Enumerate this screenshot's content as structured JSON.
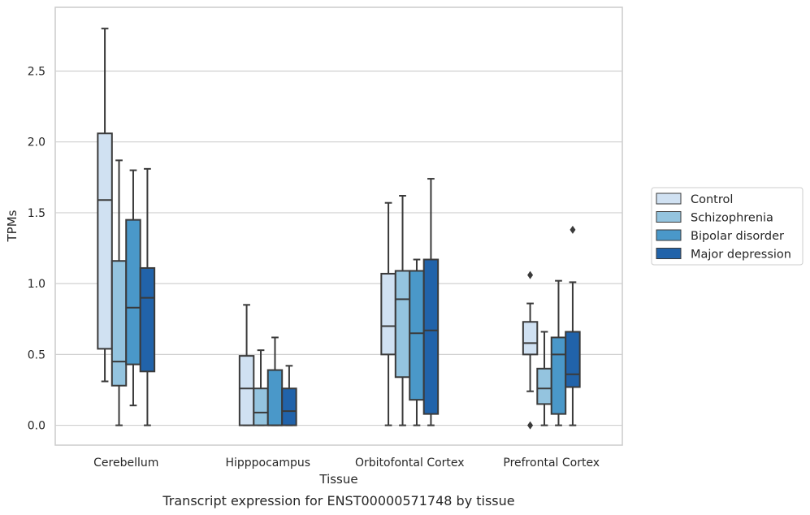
{
  "caption": "Transcript expression for ENST00000571748 by tissue",
  "chart_data": {
    "type": "box",
    "xlabel": "Tissue",
    "ylabel": "TPMs",
    "ylim": [
      -0.14,
      2.95
    ],
    "yticks": [
      "0.0",
      "0.5",
      "1.0",
      "1.5",
      "2.0",
      "2.5"
    ],
    "grid": "horizontal",
    "legend_position": "right",
    "categories": [
      "Cerebellum",
      "Hipppocampus",
      "Orbitofontal Cortex",
      "Prefrontal Cortex"
    ],
    "series": [
      {
        "name": "Control",
        "color": "#d0e1f2",
        "boxes": [
          {
            "low": 0.31,
            "q1": 0.54,
            "median": 1.59,
            "q3": 2.06,
            "high": 2.8,
            "outliers": []
          },
          {
            "low": 0.0,
            "q1": 0.0,
            "median": 0.26,
            "q3": 0.49,
            "high": 0.85,
            "outliers": []
          },
          {
            "low": 0.0,
            "q1": 0.5,
            "median": 0.7,
            "q3": 1.07,
            "high": 1.57,
            "outliers": []
          },
          {
            "low": 0.24,
            "q1": 0.5,
            "median": 0.58,
            "q3": 0.73,
            "high": 0.86,
            "outliers": [
              1.06,
              0.0
            ]
          }
        ]
      },
      {
        "name": "Schizophrenia",
        "color": "#94c4df",
        "boxes": [
          {
            "low": 0.0,
            "q1": 0.28,
            "median": 0.45,
            "q3": 1.16,
            "high": 1.87,
            "outliers": []
          },
          {
            "low": 0.0,
            "q1": 0.0,
            "median": 0.09,
            "q3": 0.26,
            "high": 0.53,
            "outliers": []
          },
          {
            "low": 0.0,
            "q1": 0.34,
            "median": 0.89,
            "q3": 1.09,
            "high": 1.62,
            "outliers": []
          },
          {
            "low": 0.0,
            "q1": 0.15,
            "median": 0.26,
            "q3": 0.4,
            "high": 0.66,
            "outliers": []
          }
        ]
      },
      {
        "name": "Bipolar disorder",
        "color": "#4a98c9",
        "boxes": [
          {
            "low": 0.14,
            "q1": 0.43,
            "median": 0.83,
            "q3": 1.45,
            "high": 1.8,
            "outliers": []
          },
          {
            "low": 0.0,
            "q1": 0.0,
            "median": 0.0,
            "q3": 0.39,
            "high": 0.62,
            "outliers": []
          },
          {
            "low": 0.0,
            "q1": 0.18,
            "median": 0.65,
            "q3": 1.09,
            "high": 1.17,
            "outliers": []
          },
          {
            "low": 0.0,
            "q1": 0.08,
            "median": 0.5,
            "q3": 0.62,
            "high": 1.02,
            "outliers": []
          }
        ]
      },
      {
        "name": "Major depression",
        "color": "#2163aa",
        "boxes": [
          {
            "low": 0.0,
            "q1": 0.38,
            "median": 0.9,
            "q3": 1.11,
            "high": 1.81,
            "outliers": []
          },
          {
            "low": 0.0,
            "q1": 0.0,
            "median": 0.1,
            "q3": 0.26,
            "high": 0.42,
            "outliers": []
          },
          {
            "low": 0.0,
            "q1": 0.08,
            "median": 0.67,
            "q3": 1.17,
            "high": 1.74,
            "outliers": []
          },
          {
            "low": 0.0,
            "q1": 0.27,
            "median": 0.36,
            "q3": 0.66,
            "high": 1.01,
            "outliers": [
              1.38
            ]
          }
        ]
      }
    ]
  }
}
